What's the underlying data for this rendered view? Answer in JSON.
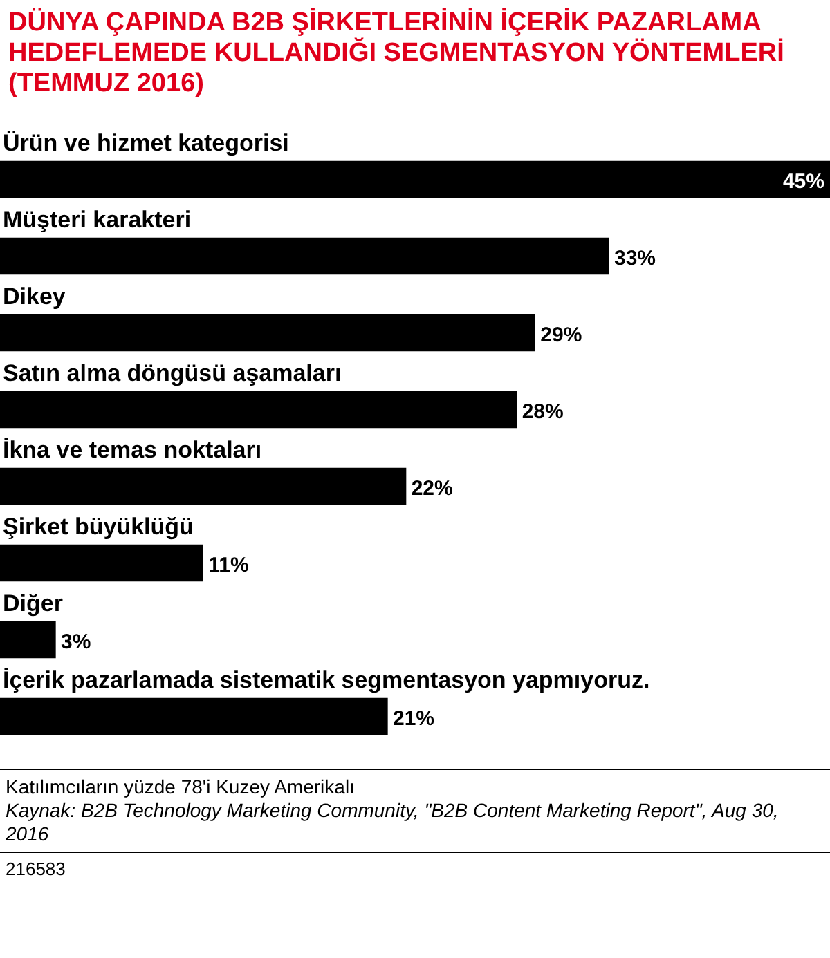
{
  "chart_data": {
    "type": "bar",
    "orientation": "horizontal",
    "title": "DÜNYA ÇAPINDA B2B ŞİRKETLERİNİN İÇERİK PAZARLAMA HEDEFLEMEDE KULLANDIĞI SEGMENTASYON YÖNTEMLERİ (TEMMUZ 2016)",
    "categories": [
      "Ürün ve hizmet kategorisi",
      "Müşteri karakteri",
      "Dikey",
      "Satın alma döngüsü aşamaları",
      "İkna ve temas noktaları",
      "Şirket büyüklüğü",
      "Diğer",
      "İçerik pazarlamada sistematik segmentasyon yapmıyoruz."
    ],
    "values": [
      45,
      33,
      29,
      28,
      22,
      11,
      3,
      21
    ],
    "color": "#000000",
    "value_labels": [
      "45%",
      "33%",
      "29%",
      "28%",
      "22%",
      "11%",
      "3%",
      "21%"
    ],
    "annotations": [
      "Katılımcıların yüzde 78'i Kuzey Amerikalı",
      "Kaynak: B2B Technology Marketing Community, \"B2B Content Marketing Report\", Aug 30, 2016",
      "216583"
    ]
  }
}
